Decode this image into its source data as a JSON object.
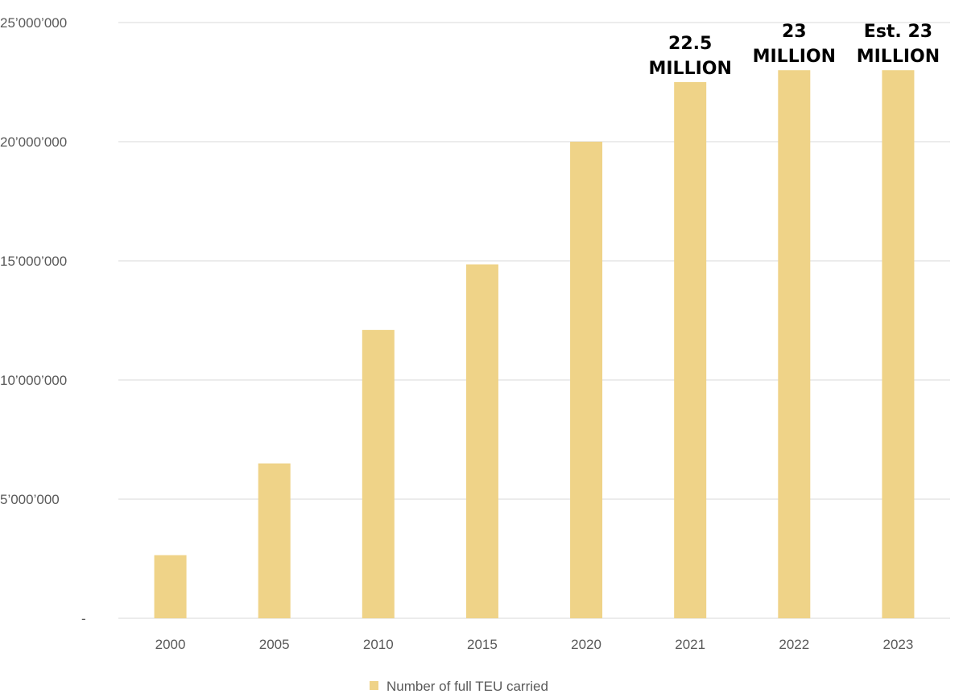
{
  "chart_data": {
    "type": "bar",
    "categories": [
      "2000",
      "2005",
      "2010",
      "2015",
      "2020",
      "2021",
      "2022",
      "2023"
    ],
    "series": [
      {
        "name": "Number of full TEU carried",
        "values": [
          2650000,
          6500000,
          12100000,
          14850000,
          20000000,
          22500000,
          23000000,
          23000000
        ],
        "color": "#efd388"
      }
    ],
    "data_labels": [
      {
        "category": "2021",
        "lines": [
          "22.5",
          "MILLION"
        ]
      },
      {
        "category": "2022",
        "lines": [
          "23",
          "MILLION"
        ]
      },
      {
        "category": "2023",
        "lines": [
          "Est. 23",
          "MILLION"
        ]
      }
    ],
    "ylim": [
      0,
      25000000
    ],
    "y_ticks": [
      {
        "value": 0,
        "label": "-"
      },
      {
        "value": 5000000,
        "label": "5’000’000"
      },
      {
        "value": 10000000,
        "label": "10’000’000"
      },
      {
        "value": 15000000,
        "label": "15’000’000"
      },
      {
        "value": 20000000,
        "label": "20’000’000"
      },
      {
        "value": 25000000,
        "label": "25’000’000"
      }
    ],
    "grid": true,
    "gridline_color": "#d9d9d9",
    "legend_position": "bottom",
    "title": "",
    "xlabel": "",
    "ylabel": ""
  }
}
